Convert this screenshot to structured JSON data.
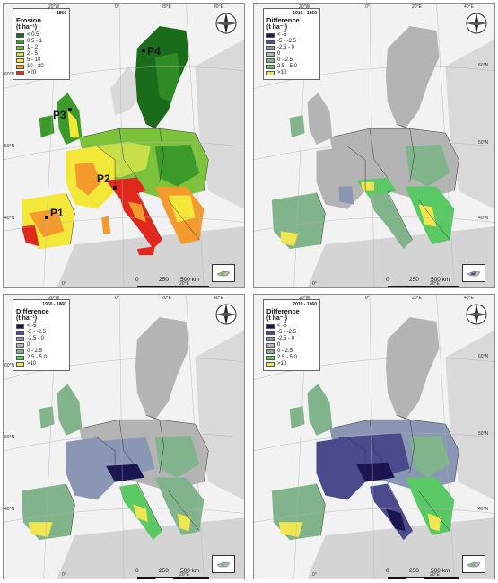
{
  "panels": [
    {
      "year": "1860",
      "title": "Erosion",
      "unit": "(t ha⁻¹)",
      "legend": [
        {
          "label": "< 0.5",
          "color": "#1a6b1a"
        },
        {
          "label": "0.5 - 1",
          "color": "#3c9a2a"
        },
        {
          "label": "1 - 2",
          "color": "#7cc23a"
        },
        {
          "label": "2 - 5",
          "color": "#c7e04a"
        },
        {
          "label": "5 - 10",
          "color": "#f3e83a"
        },
        {
          "label": "10 - 20",
          "color": "#f59a2c"
        },
        {
          "label": ">20",
          "color": "#e0281c"
        }
      ],
      "points": [
        "P1",
        "P2",
        "P3",
        "P4"
      ],
      "scale": {
        "zero": "0",
        "mid": "250",
        "end": "500 km"
      },
      "grid_top": [
        "20°W",
        "0°",
        "20°E",
        "40°E"
      ],
      "grid_left": [
        "60°N",
        "50°N",
        "40°N"
      ],
      "grid_bottom": [
        "0°",
        "20°E"
      ]
    },
    {
      "year": "1910 - 1860",
      "title": "Difference",
      "unit": "(t ha⁻¹)",
      "legend": [
        {
          "label": "< -5",
          "color": "#1a1450"
        },
        {
          "label": "-5 - -2.5",
          "color": "#4a4a8c"
        },
        {
          "label": "-2.5 - 0",
          "color": "#8a96b4"
        },
        {
          "label": "0",
          "color": "#b4b4b4"
        },
        {
          "label": "0 - 2.5",
          "color": "#82b48c"
        },
        {
          "label": "2.5 - 5.0",
          "color": "#5ac864"
        },
        {
          "label": ">10",
          "color": "#f0e650"
        }
      ],
      "scale": {
        "zero": "0",
        "mid": "250",
        "end": "500 km"
      },
      "grid_top": [
        "20°W",
        "0°",
        "20°E",
        "40°E"
      ],
      "grid_right": [
        "60°N",
        "50°N",
        "40°N"
      ],
      "grid_bottom": [
        "0°",
        "20°E"
      ]
    },
    {
      "year": "1960 - 1860",
      "title": "Difference",
      "unit": "(t ha⁻¹)",
      "legend": [
        {
          "label": "< -5",
          "color": "#1a1450"
        },
        {
          "label": "-5 - -2.5",
          "color": "#4a4a8c"
        },
        {
          "label": "-2.5 - 0",
          "color": "#8a96b4"
        },
        {
          "label": "0",
          "color": "#b4b4b4"
        },
        {
          "label": "0 - 2.5",
          "color": "#82b48c"
        },
        {
          "label": "2.5 - 5.0",
          "color": "#5ac864"
        },
        {
          "label": ">10",
          "color": "#f0e650"
        }
      ],
      "scale": {
        "zero": "0",
        "mid": "250",
        "end": "500 km"
      },
      "grid_top": [
        "20°W",
        "0°",
        "20°E",
        "40°E"
      ],
      "grid_left": [
        "60°N",
        "50°N",
        "40°N"
      ],
      "grid_bottom": [
        "0°",
        "20°E"
      ]
    },
    {
      "year": "2010 - 1860",
      "title": "Difference",
      "unit": "(t ha⁻¹)",
      "legend": [
        {
          "label": "< -5",
          "color": "#1a1450"
        },
        {
          "label": "-5 - -2.5",
          "color": "#4a4a8c"
        },
        {
          "label": "-2.5 - 0",
          "color": "#8a96b4"
        },
        {
          "label": "0",
          "color": "#b4b4b4"
        },
        {
          "label": "0 - 2.5",
          "color": "#82b48c"
        },
        {
          "label": "2.5 - 5.0",
          "color": "#5ac864"
        },
        {
          "label": ">10",
          "color": "#f0e650"
        }
      ],
      "scale": {
        "zero": "0",
        "mid": "250",
        "end": "500 km"
      },
      "grid_top": [
        "20°W",
        "0°",
        "20°E",
        "40°E"
      ],
      "grid_right": [
        "60°N",
        "50°N",
        "40°N"
      ],
      "grid_bottom": [
        "0°",
        "20°E"
      ]
    }
  ],
  "colors": {
    "non_eu_land": "#d9d9d9",
    "sea": "#f2f2f2",
    "border": "#333333",
    "neutral": "#b4b4b4"
  },
  "icons": [
    "north-arrow-compass-icon",
    "cyprus-inset-map"
  ]
}
